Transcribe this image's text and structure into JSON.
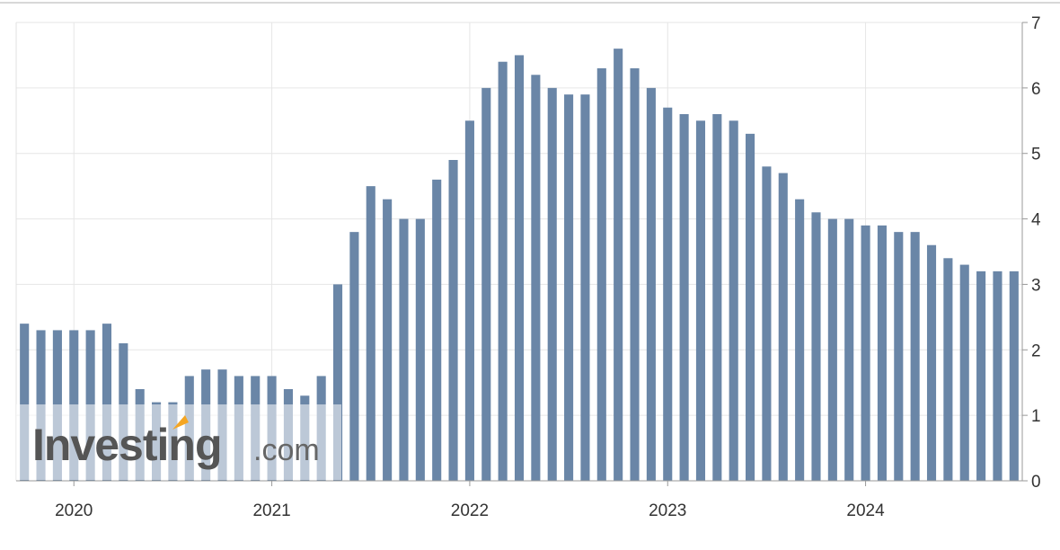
{
  "chart_data": {
    "type": "bar",
    "title": "",
    "xlabel": "",
    "ylabel": "",
    "ylim": [
      0,
      7
    ],
    "yticks": [
      0,
      1,
      2,
      3,
      4,
      5,
      6,
      7
    ],
    "y_axis_side": "right",
    "grid": true,
    "legend": "none",
    "bar_color": "#6a86a7",
    "x_tick_labels": [
      "2020",
      "2021",
      "2022",
      "2023",
      "2024"
    ],
    "categories": [
      "2019-10",
      "2019-11",
      "2019-12",
      "2020-01",
      "2020-02",
      "2020-03",
      "2020-04",
      "2020-05",
      "2020-06",
      "2020-07",
      "2020-08",
      "2020-09",
      "2020-10",
      "2020-11",
      "2020-12",
      "2021-01",
      "2021-02",
      "2021-03",
      "2021-04",
      "2021-05",
      "2021-06",
      "2021-07",
      "2021-08",
      "2021-09",
      "2021-10",
      "2021-11",
      "2021-12",
      "2022-01",
      "2022-02",
      "2022-03",
      "2022-04",
      "2022-05",
      "2022-06",
      "2022-07",
      "2022-08",
      "2022-09",
      "2022-10",
      "2022-11",
      "2022-12",
      "2023-01",
      "2023-02",
      "2023-03",
      "2023-04",
      "2023-05",
      "2023-06",
      "2023-07",
      "2023-08",
      "2023-09",
      "2023-10",
      "2023-11",
      "2023-12",
      "2024-01",
      "2024-02",
      "2024-03",
      "2024-04",
      "2024-05",
      "2024-06",
      "2024-07",
      "2024-08",
      "2024-09",
      "2024-10"
    ],
    "values": [
      2.4,
      2.3,
      2.3,
      2.3,
      2.3,
      2.4,
      2.1,
      1.4,
      1.2,
      1.2,
      1.6,
      1.7,
      1.7,
      1.6,
      1.6,
      1.6,
      1.4,
      1.3,
      1.6,
      3.0,
      3.8,
      4.5,
      4.3,
      4.0,
      4.0,
      4.6,
      4.9,
      5.5,
      6.0,
      6.4,
      6.5,
      6.2,
      6.0,
      5.9,
      5.9,
      6.3,
      6.6,
      6.3,
      6.0,
      5.7,
      5.6,
      5.5,
      5.6,
      5.5,
      5.3,
      4.8,
      4.7,
      4.3,
      4.1,
      4.0,
      4.0,
      3.9,
      3.9,
      3.8,
      3.8,
      3.6,
      3.4,
      3.3,
      3.2,
      3.2,
      3.2
    ]
  },
  "watermark": {
    "brand": "Investing",
    "suffix": ".com",
    "accent_color": "#f5a623"
  }
}
